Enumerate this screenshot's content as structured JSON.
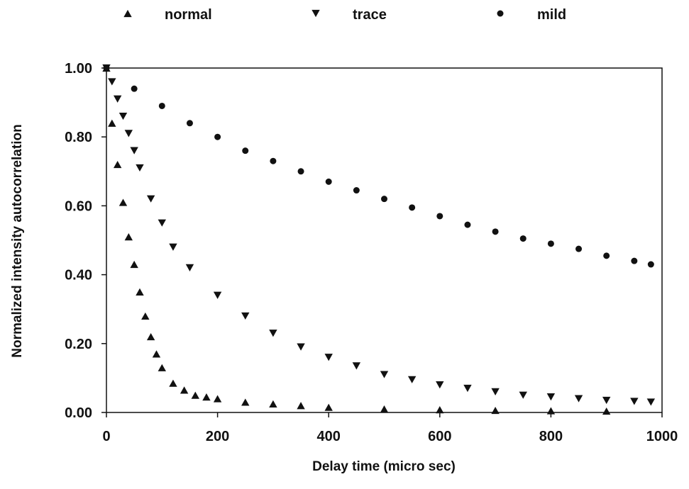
{
  "chart_data": {
    "type": "scatter",
    "title": "",
    "xlabel": "Delay time (micro sec)",
    "ylabel": "Normalized intensity autocorrelation",
    "xlim": [
      0,
      1000
    ],
    "ylim": [
      0,
      1
    ],
    "x_ticks": [
      0,
      200,
      400,
      600,
      800,
      1000
    ],
    "x_tick_labels": [
      "0",
      "200",
      "400",
      "600",
      "800",
      "1000"
    ],
    "y_ticks": [
      0,
      0.2,
      0.4,
      0.6,
      0.8,
      1.0
    ],
    "y_tick_labels": [
      "0.00",
      "0.20",
      "0.40",
      "0.60",
      "0.80",
      "1.00"
    ],
    "grid": false,
    "legend_position": "top",
    "series": [
      {
        "name": "normal",
        "marker": "triangle-up",
        "color": "#111111",
        "x": [
          0,
          10,
          20,
          30,
          40,
          50,
          60,
          70,
          80,
          90,
          100,
          120,
          140,
          160,
          180,
          200,
          250,
          300,
          350,
          400,
          500,
          600,
          700,
          800,
          900
        ],
        "y": [
          1.0,
          0.84,
          0.72,
          0.61,
          0.51,
          0.43,
          0.35,
          0.28,
          0.22,
          0.17,
          0.13,
          0.085,
          0.065,
          0.05,
          0.045,
          0.04,
          0.03,
          0.025,
          0.02,
          0.015,
          0.01,
          0.008,
          0.006,
          0.005,
          0.004
        ]
      },
      {
        "name": "trace",
        "marker": "triangle-down",
        "color": "#111111",
        "x": [
          0,
          10,
          20,
          30,
          40,
          50,
          60,
          80,
          100,
          120,
          150,
          200,
          250,
          300,
          350,
          400,
          450,
          500,
          550,
          600,
          650,
          700,
          750,
          800,
          850,
          900,
          950,
          980
        ],
        "y": [
          1.0,
          0.96,
          0.91,
          0.86,
          0.81,
          0.76,
          0.71,
          0.62,
          0.55,
          0.48,
          0.42,
          0.34,
          0.28,
          0.23,
          0.19,
          0.16,
          0.135,
          0.11,
          0.095,
          0.08,
          0.07,
          0.06,
          0.05,
          0.045,
          0.04,
          0.035,
          0.032,
          0.03
        ]
      },
      {
        "name": "mild",
        "marker": "circle",
        "color": "#111111",
        "x": [
          0,
          50,
          100,
          150,
          200,
          250,
          300,
          350,
          400,
          450,
          500,
          550,
          600,
          650,
          700,
          750,
          800,
          850,
          900,
          950,
          980
        ],
        "y": [
          1.0,
          0.94,
          0.89,
          0.84,
          0.8,
          0.76,
          0.73,
          0.7,
          0.67,
          0.645,
          0.62,
          0.595,
          0.57,
          0.545,
          0.525,
          0.505,
          0.49,
          0.475,
          0.455,
          0.44,
          0.43
        ]
      }
    ]
  }
}
